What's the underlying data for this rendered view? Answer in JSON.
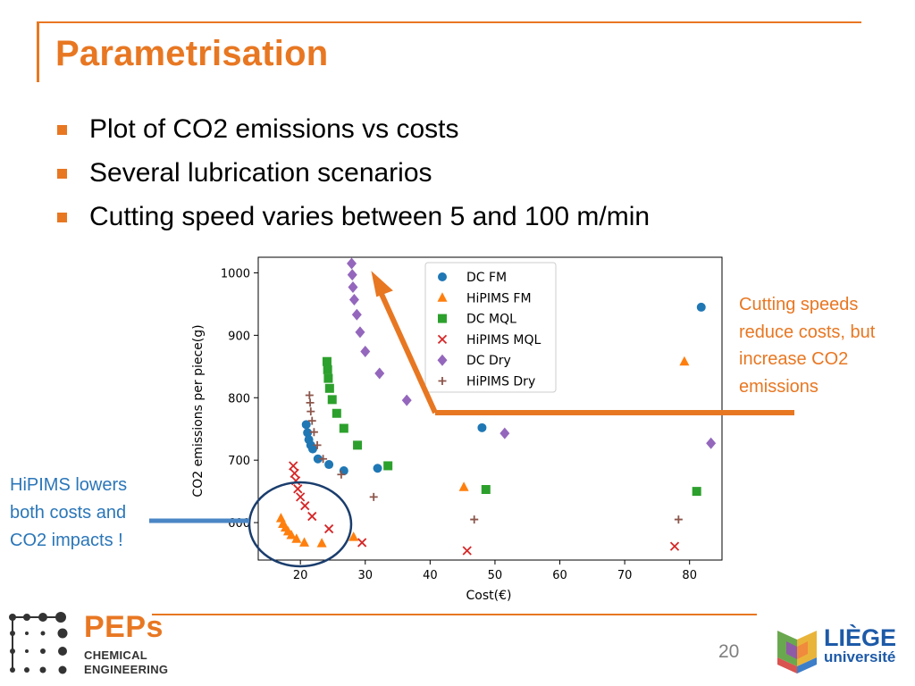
{
  "slide": {
    "title": "Parametrisation",
    "bullets": [
      "Plot of CO2 emissions vs costs",
      "Several lubrication scenarios",
      "Cutting speed varies between 5 and 100 m/min"
    ],
    "annotation_right": "Cutting speeds reduce costs, but increase CO2 emissions",
    "annotation_left": "HiPIMS lowers both costs and CO2 impacts !",
    "page_number": "20",
    "accent_color": "#e87722",
    "blue_color": "#2a76b8"
  },
  "logos": {
    "peps_name": "PEPs",
    "peps_line1": "CHEMICAL",
    "peps_line2": "ENGINEERING",
    "liege_name": "LIÈGE",
    "liege_sub": "université"
  },
  "chart_data": {
    "type": "scatter",
    "title": "",
    "xlabel": "Cost(€)",
    "ylabel": "CO2 emissions per piece(g)",
    "xlim": [
      13.5,
      85
    ],
    "ylim": [
      540,
      1025
    ],
    "xticks": [
      20,
      30,
      40,
      50,
      60,
      70,
      80
    ],
    "yticks": [
      600,
      700,
      800,
      900,
      1000
    ],
    "legend_position": "top-center",
    "grid": false,
    "series": [
      {
        "name": "DC FM",
        "marker": "circle",
        "color": "#1f77b4",
        "points": [
          [
            20.9,
            757
          ],
          [
            21.1,
            744
          ],
          [
            21.3,
            733
          ],
          [
            21.6,
            724
          ],
          [
            21.9,
            718
          ],
          [
            22.7,
            702
          ],
          [
            24.4,
            693
          ],
          [
            26.7,
            683
          ],
          [
            31.9,
            687
          ],
          [
            48.0,
            752
          ],
          [
            81.8,
            945
          ]
        ]
      },
      {
        "name": "HiPIMS FM",
        "marker": "triangle",
        "color": "#ff7f0e",
        "points": [
          [
            17.0,
            607
          ],
          [
            17.3,
            598
          ],
          [
            17.7,
            592
          ],
          [
            18.1,
            586
          ],
          [
            18.6,
            580
          ],
          [
            19.4,
            574
          ],
          [
            20.6,
            568
          ],
          [
            23.3,
            567
          ],
          [
            28.2,
            577
          ],
          [
            45.2,
            657
          ],
          [
            79.2,
            858
          ]
        ]
      },
      {
        "name": "DC MQL",
        "marker": "square",
        "color": "#2ca02c",
        "points": [
          [
            24.1,
            858
          ],
          [
            24.2,
            845
          ],
          [
            24.3,
            831
          ],
          [
            24.5,
            815
          ],
          [
            24.9,
            797
          ],
          [
            25.6,
            775
          ],
          [
            26.7,
            751
          ],
          [
            28.8,
            724
          ],
          [
            33.5,
            691
          ],
          [
            48.6,
            653
          ],
          [
            81.1,
            650
          ]
        ]
      },
      {
        "name": "HiPIMS MQL",
        "marker": "x",
        "color": "#d62728",
        "points": [
          [
            18.9,
            691
          ],
          [
            19.1,
            679
          ],
          [
            19.3,
            667
          ],
          [
            19.6,
            654
          ],
          [
            20.0,
            641
          ],
          [
            20.7,
            627
          ],
          [
            21.8,
            610
          ],
          [
            24.4,
            590
          ],
          [
            29.5,
            568
          ],
          [
            45.7,
            555
          ],
          [
            77.7,
            562
          ]
        ]
      },
      {
        "name": "DC Dry",
        "marker": "diamond",
        "color": "#9467bd",
        "points": [
          [
            27.9,
            1015
          ],
          [
            28.0,
            997
          ],
          [
            28.1,
            977
          ],
          [
            28.3,
            957
          ],
          [
            28.7,
            933
          ],
          [
            29.2,
            905
          ],
          [
            30.0,
            874
          ],
          [
            32.2,
            839
          ],
          [
            36.4,
            796
          ],
          [
            51.5,
            743
          ],
          [
            83.3,
            727
          ]
        ]
      },
      {
        "name": "HiPIMS Dry",
        "marker": "plus",
        "color": "#8c564b",
        "points": [
          [
            21.4,
            804
          ],
          [
            21.5,
            792
          ],
          [
            21.6,
            778
          ],
          [
            21.8,
            763
          ],
          [
            22.1,
            745
          ],
          [
            22.6,
            724
          ],
          [
            23.5,
            702
          ],
          [
            26.3,
            677
          ],
          [
            31.3,
            641
          ],
          [
            46.8,
            605
          ],
          [
            78.3,
            605
          ]
        ]
      }
    ]
  }
}
